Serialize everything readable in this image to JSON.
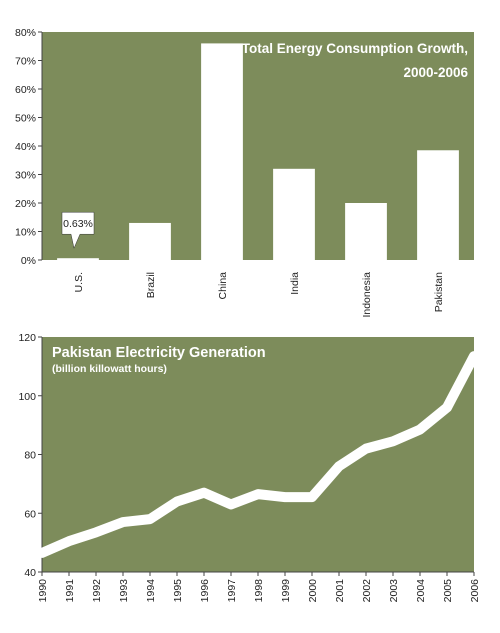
{
  "chart_data": [
    {
      "type": "bar",
      "title": "Total Energy Consumption Growth,",
      "subtitle": "2000-2006",
      "categories": [
        "U.S.",
        "Brazil",
        "China",
        "India",
        "Indonesia",
        "Pakistan"
      ],
      "values": [
        0.63,
        13,
        76,
        32,
        20,
        38.5
      ],
      "ylim": [
        0,
        80
      ],
      "y_ticks": [
        "0%",
        "10%",
        "20%",
        "30%",
        "40%",
        "50%",
        "60%",
        "70%",
        "80%"
      ],
      "callout": "0.63%",
      "grid": false
    },
    {
      "type": "line",
      "title": "Pakistan Electricity Generation",
      "subtitle": "(billion killowatt hours)",
      "x": [
        "1990",
        "1991",
        "1992",
        "1993",
        "1994",
        "1995",
        "1996",
        "1997",
        "1998",
        "1999",
        "2000",
        "2001",
        "2002",
        "2003",
        "2004",
        "2005",
        "2006"
      ],
      "values": [
        46.5,
        50.5,
        53.5,
        57,
        58,
        64,
        67,
        63,
        66.5,
        65.5,
        65.5,
        76,
        82,
        84.5,
        88.5,
        96,
        113.5
      ],
      "ylim": [
        40,
        120
      ],
      "y_ticks": [
        "40",
        "60",
        "80",
        "100",
        "120"
      ],
      "grid": false
    }
  ],
  "colors": {
    "panel": "#7d8c5b",
    "axis": "#444444",
    "mark": "#ffffff"
  }
}
